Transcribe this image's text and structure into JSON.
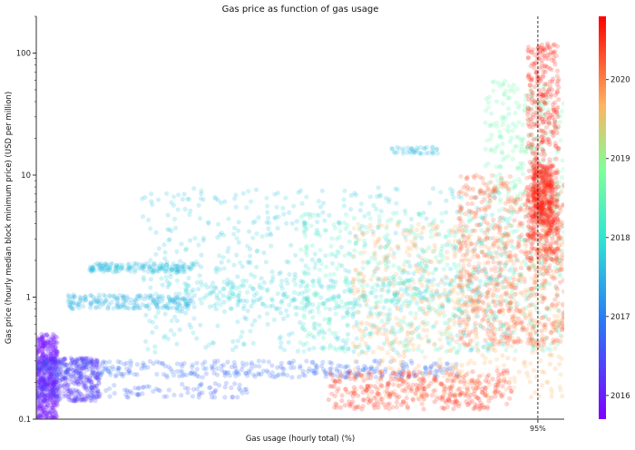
{
  "chart_data": {
    "type": "scatter",
    "title": "Gas price as function of gas usage",
    "xlabel": "Gas usage (hourly total) (%)",
    "ylabel": "Gas price (hourly median block minimum price) (USD per million)",
    "y_scale": "log",
    "ylim": [
      0.1,
      200
    ],
    "xlim": [
      0,
      100
    ],
    "y_ticks": [
      {
        "value": 0.1,
        "label": "0.1"
      },
      {
        "value": 1,
        "label": "1"
      },
      {
        "value": 10,
        "label": "10"
      },
      {
        "value": 100,
        "label": "100"
      }
    ],
    "x_ticks": [
      {
        "value": 95,
        "label": "95%"
      }
    ],
    "reference_line": {
      "x": 95,
      "style": "dashed"
    },
    "colorbar": {
      "colormap": "rainbow",
      "range": [
        2015.7,
        2020.8
      ],
      "ticks": [
        "2016",
        "2017",
        "2018",
        "2019",
        "2020"
      ],
      "tick_values": [
        2016,
        2017,
        2018,
        2019,
        2020
      ]
    },
    "clusters": [
      {
        "year": 2015.9,
        "x": [
          0,
          4
        ],
        "y": [
          0.1,
          0.5
        ],
        "n": 500
      },
      {
        "year": 2016.3,
        "x": [
          0,
          12
        ],
        "y": [
          0.14,
          0.32
        ],
        "n": 450
      },
      {
        "year": 2016.8,
        "x": [
          0,
          80
        ],
        "y": [
          0.22,
          0.3
        ],
        "n": 350
      },
      {
        "year": 2016.7,
        "x": [
          10,
          40
        ],
        "y": [
          0.15,
          0.2
        ],
        "n": 80
      },
      {
        "year": 2017.5,
        "x": [
          6,
          30
        ],
        "y": [
          0.8,
          1.05
        ],
        "n": 200
      },
      {
        "year": 2017.6,
        "x": [
          10,
          30
        ],
        "y": [
          1.6,
          1.9
        ],
        "n": 160
      },
      {
        "year": 2017.7,
        "x": [
          20,
          90
        ],
        "y": [
          0.35,
          8
        ],
        "n": 650
      },
      {
        "year": 2017.8,
        "x": [
          25,
          85
        ],
        "y": [
          0.8,
          1.4
        ],
        "n": 220
      },
      {
        "year": 2017.6,
        "x": [
          67,
          76
        ],
        "y": [
          15,
          17
        ],
        "n": 40
      },
      {
        "year": 2018.3,
        "x": [
          50,
          100
        ],
        "y": [
          0.35,
          5
        ],
        "n": 550
      },
      {
        "year": 2018.6,
        "x": [
          85,
          100
        ],
        "y": [
          5,
          60
        ],
        "n": 250
      },
      {
        "year": 2019.7,
        "x": [
          60,
          100
        ],
        "y": [
          0.15,
          4
        ],
        "n": 700
      },
      {
        "year": 2020.2,
        "x": [
          80,
          100
        ],
        "y": [
          0.4,
          10
        ],
        "n": 650
      },
      {
        "year": 2020.5,
        "x": [
          55,
          90
        ],
        "y": [
          0.12,
          0.25
        ],
        "n": 350
      },
      {
        "year": 2020.6,
        "x": [
          93,
          99
        ],
        "y": [
          2,
          120
        ],
        "n": 500
      },
      {
        "year": 2020.6,
        "x": [
          94,
          98
        ],
        "y": [
          4,
          12
        ],
        "n": 250
      }
    ],
    "point_opacity": 0.22,
    "grid": false,
    "legend": "colorbar-right"
  }
}
